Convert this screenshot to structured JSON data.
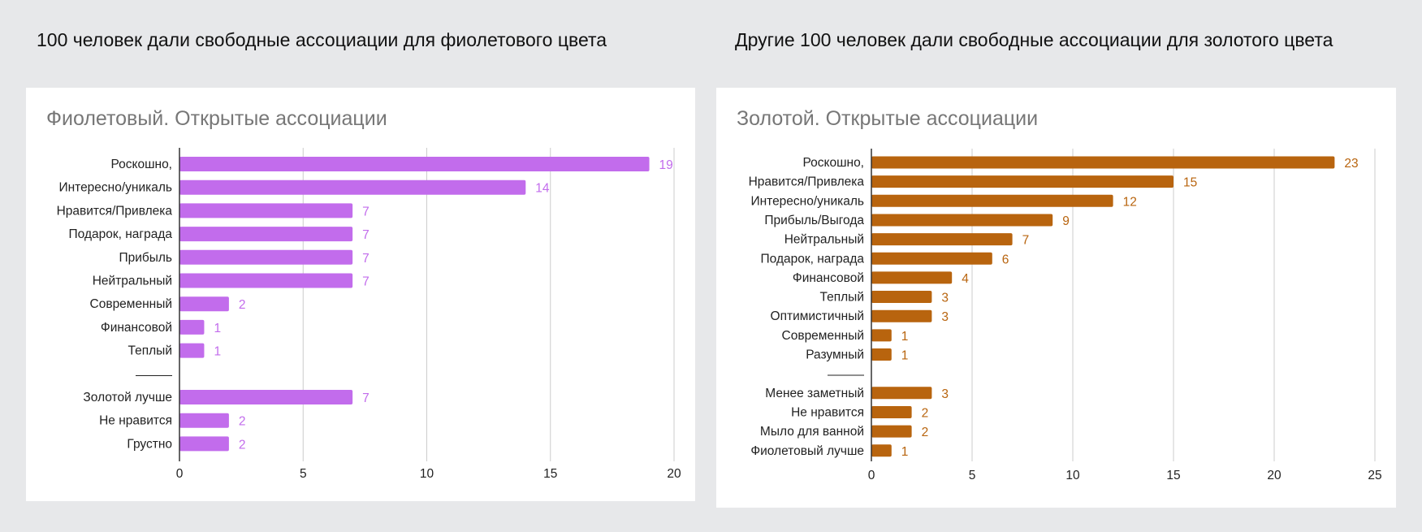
{
  "headings": {
    "left": "100 человек дали свободные ассоциации для фиолетового цвета",
    "right": "Другие 100 человек дали свободные ассоциации для золотого цвета"
  },
  "chart_data": [
    {
      "type": "bar",
      "orientation": "horizontal",
      "title": "Фиолетовый. Открытые ассоциации",
      "color": "#c26cec",
      "categories": [
        "Роскошно,",
        "Интересно/уникаль",
        "Нравится/Привлека",
        "Подарок, награда",
        "Прибыль",
        "Нейтральный",
        "Современный",
        "Финансовой",
        "Теплый",
        "Золотой лучше",
        "Не нравится",
        "Грустно"
      ],
      "values": [
        19,
        14,
        7,
        7,
        7,
        7,
        2,
        1,
        1,
        7,
        2,
        2
      ],
      "separator_after_index": 8,
      "separator_label": "———",
      "xlim": [
        0,
        20
      ],
      "xticks": [
        0,
        5,
        10,
        15,
        20
      ],
      "grid": true,
      "xlabel": "",
      "ylabel": ""
    },
    {
      "type": "bar",
      "orientation": "horizontal",
      "title": "Золотой. Открытые ассоциации",
      "color": "#b8640e",
      "categories": [
        "Роскошно,",
        "Нравится/Привлека",
        "Интересно/уникаль",
        "Прибыль/Выгода",
        "Нейтральный",
        "Подарок, награда",
        "Финансовой",
        "Теплый",
        "Оптимистичный",
        "Современный",
        "Разумный",
        "Менее заметный",
        "Не нравится",
        "Мыло для ванной",
        "Фиолетовый лучше"
      ],
      "values": [
        23,
        15,
        12,
        9,
        7,
        6,
        4,
        3,
        3,
        1,
        1,
        3,
        2,
        2,
        1
      ],
      "separator_after_index": 10,
      "separator_label": "———",
      "xlim": [
        0,
        25
      ],
      "xticks": [
        0,
        5,
        10,
        15,
        20,
        25
      ],
      "grid": true,
      "xlabel": "",
      "ylabel": ""
    }
  ]
}
